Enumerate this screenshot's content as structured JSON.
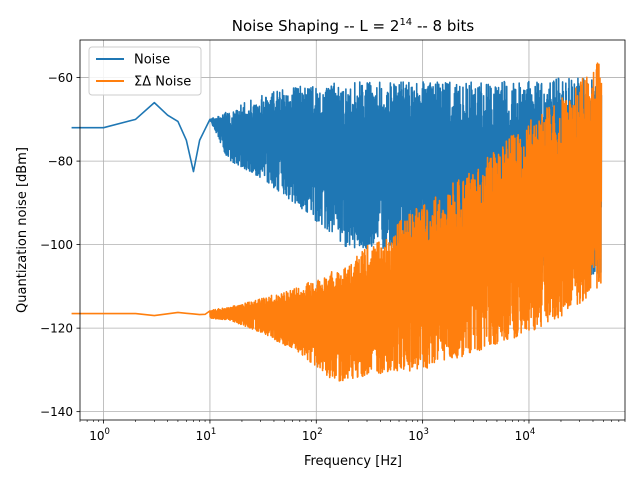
{
  "chart_data": {
    "type": "line",
    "title": "Noise Shaping -- L = 2",
    "title_exponent": "14",
    "title_suffix": " -- 8 bits",
    "xlabel": "Frequency [Hz]",
    "ylabel": "Quantization noise [dBm]",
    "xscale": "log",
    "xlim": [
      0.6,
      80000
    ],
    "ylim": [
      -142,
      -51
    ],
    "yticks": [
      -140,
      -120,
      -100,
      -80,
      -60
    ],
    "ytick_labels": [
      "−140",
      "−120",
      "−100",
      "−80",
      "−60"
    ],
    "xticks": [
      1,
      10,
      100,
      1000,
      10000
    ],
    "xtick_base": "10",
    "xtick_exponents": [
      "0",
      "1",
      "2",
      "3",
      "4"
    ],
    "grid": true,
    "legend_position": "top-left",
    "series": [
      {
        "name": "Noise",
        "color": "#1f77b4",
        "envelope": [
          {
            "x": 0.5,
            "top": -72,
            "bottom": -72
          },
          {
            "x": 1,
            "top": -72,
            "bottom": -72
          },
          {
            "x": 2,
            "top": -70,
            "bottom": -70
          },
          {
            "x": 3,
            "top": -66,
            "bottom": -66
          },
          {
            "x": 4,
            "top": -69,
            "bottom": -69
          },
          {
            "x": 5,
            "top": -70.5,
            "bottom": -70.5
          },
          {
            "x": 6,
            "top": -75,
            "bottom": -75
          },
          {
            "x": 7,
            "top": -82.5,
            "bottom": -82.5
          },
          {
            "x": 8,
            "top": -75,
            "bottom": -75
          },
          {
            "x": 10,
            "top": -70,
            "bottom": -70
          },
          {
            "x": 15,
            "top": -68,
            "bottom": -80
          },
          {
            "x": 30,
            "top": -64,
            "bottom": -84
          },
          {
            "x": 70,
            "top": -62,
            "bottom": -91
          },
          {
            "x": 200,
            "top": -61,
            "bottom": -101
          },
          {
            "x": 1000,
            "top": -61,
            "bottom": -101
          },
          {
            "x": 5000,
            "top": -61,
            "bottom": -104
          },
          {
            "x": 20000,
            "top": -60,
            "bottom": -108
          },
          {
            "x": 48000,
            "top": -60,
            "bottom": -108
          }
        ]
      },
      {
        "name": "ΣΔ Noise",
        "color": "#ff7f0e",
        "envelope": [
          {
            "x": 0.5,
            "top": -116.5,
            "bottom": -116.5
          },
          {
            "x": 1,
            "top": -116.5,
            "bottom": -116.5
          },
          {
            "x": 2,
            "top": -116.5,
            "bottom": -116.5
          },
          {
            "x": 3,
            "top": -117,
            "bottom": -117
          },
          {
            "x": 5,
            "top": -116,
            "bottom": -116.5
          },
          {
            "x": 8,
            "top": -116,
            "bottom": -117.5
          },
          {
            "x": 15,
            "top": -115,
            "bottom": -118
          },
          {
            "x": 30,
            "top": -113,
            "bottom": -121
          },
          {
            "x": 70,
            "top": -110,
            "bottom": -126
          },
          {
            "x": 150,
            "top": -106,
            "bottom": -133
          },
          {
            "x": 400,
            "top": -98,
            "bottom": -131
          },
          {
            "x": 1000,
            "top": -90,
            "bottom": -130
          },
          {
            "x": 3000,
            "top": -82,
            "bottom": -126
          },
          {
            "x": 10000,
            "top": -70,
            "bottom": -121
          },
          {
            "x": 25000,
            "top": -63,
            "bottom": -116
          },
          {
            "x": 48000,
            "top": -55,
            "bottom": -110
          }
        ]
      }
    ]
  }
}
